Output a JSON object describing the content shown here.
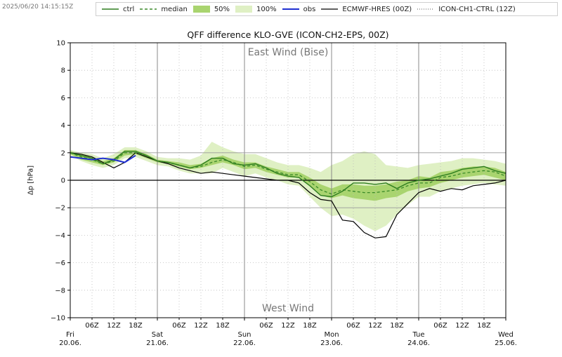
{
  "timestamp": "2025/06/20 14:15:15Z",
  "legend": [
    {
      "label": "ctrl",
      "style": "solid-green"
    },
    {
      "label": "median",
      "style": "dashed-green"
    },
    {
      "label": "50%",
      "style": "fill-dark"
    },
    {
      "label": "100%",
      "style": "fill-light"
    },
    {
      "label": "obs",
      "style": "solid-blue"
    },
    {
      "label": "ECMWF-HRES (00Z)",
      "style": "solid-black"
    },
    {
      "label": "ICON-CH1-CTRL (12Z)",
      "style": "dotted-black"
    }
  ],
  "colors": {
    "ctrl": "#2e7d1f",
    "median": "#3a8a28",
    "band50": "#a9d46f",
    "band100": "#dff0c4",
    "obs": "#1f2fd1",
    "ecmwf": "#000000",
    "icon_ch1": "#555555",
    "grid": "#bbbbbb"
  },
  "chart_data": {
    "type": "line",
    "title": "QFF difference KLO-GVE (ICON-CH2-EPS, 00Z)",
    "ylabel": "Δp [hPa]",
    "xlabel": "",
    "ylim": [
      -10,
      10
    ],
    "yticks": [
      10,
      8,
      6,
      4,
      2,
      0,
      -2,
      -4,
      -6,
      -8,
      -10
    ],
    "yticklabels": [
      "10",
      "8",
      "6",
      "4",
      "2",
      "0",
      "−2",
      "−4",
      "−6",
      "−8",
      "−10"
    ],
    "xlim_hours": [
      0,
      120
    ],
    "day_ticks": [
      {
        "h": 0,
        "day": "Fri",
        "date": "20.06."
      },
      {
        "h": 24,
        "day": "Sat",
        "date": "21.06."
      },
      {
        "h": 48,
        "day": "Sun",
        "date": "22.06."
      },
      {
        "h": 72,
        "day": "Mon",
        "date": "23.06."
      },
      {
        "h": 96,
        "day": "Tue",
        "date": "24.06."
      },
      {
        "h": 120,
        "day": "Wed",
        "date": "25.06."
      }
    ],
    "hour_labels": [
      "06Z",
      "12Z",
      "18Z"
    ],
    "annotations": {
      "top": "East Wind (Bise)",
      "bottom": "West Wind"
    },
    "x": [
      0,
      3,
      6,
      9,
      12,
      15,
      18,
      21,
      24,
      27,
      30,
      33,
      36,
      39,
      42,
      45,
      48,
      51,
      54,
      57,
      60,
      63,
      66,
      69,
      72,
      75,
      78,
      81,
      84,
      87,
      90,
      93,
      96,
      99,
      102,
      105,
      108,
      111,
      114,
      117,
      120
    ],
    "series": [
      {
        "name": "ctrl",
        "values": [
          2.0,
          1.8,
          1.6,
          1.2,
          1.5,
          2.1,
          2.1,
          1.8,
          1.4,
          1.3,
          1.1,
          0.9,
          1.1,
          1.6,
          1.6,
          1.2,
          1.1,
          1.2,
          0.9,
          0.5,
          0.3,
          0.2,
          -0.4,
          -1.1,
          -1.2,
          -0.8,
          -0.2,
          -0.2,
          -0.3,
          -0.2,
          -0.6,
          -0.2,
          0.0,
          0.1,
          0.3,
          0.5,
          0.8,
          0.9,
          1.0,
          0.7,
          0.5
        ]
      },
      {
        "name": "median",
        "values": [
          2.0,
          1.7,
          1.5,
          1.2,
          1.4,
          2.0,
          2.0,
          1.8,
          1.4,
          1.3,
          1.1,
          0.9,
          1.0,
          1.3,
          1.5,
          1.3,
          1.0,
          1.1,
          0.8,
          0.6,
          0.4,
          0.4,
          -0.1,
          -0.7,
          -1.0,
          -0.7,
          -0.8,
          -0.9,
          -0.9,
          -0.8,
          -0.7,
          -0.4,
          -0.2,
          -0.2,
          0.2,
          0.3,
          0.5,
          0.6,
          0.7,
          0.6,
          0.3
        ]
      },
      {
        "name": "ECMWF-HRES (00Z)",
        "values": [
          2.0,
          1.9,
          1.7,
          1.3,
          0.9,
          1.3,
          2.0,
          1.7,
          1.4,
          1.2,
          0.9,
          0.7,
          0.5,
          0.6,
          0.5,
          0.4,
          0.3,
          0.2,
          0.1,
          0.0,
          0.0,
          -0.2,
          -0.9,
          -1.4,
          -1.5,
          -2.9,
          -3.0,
          -3.8,
          -4.2,
          -4.1,
          -2.5,
          -1.7,
          -0.9,
          -0.6,
          -0.8,
          -0.6,
          -0.7,
          -0.4,
          -0.3,
          -0.2,
          0.0
        ]
      },
      {
        "name": "obs",
        "x": [
          0,
          3,
          6,
          9,
          12,
          15,
          18
        ],
        "values": [
          1.7,
          1.6,
          1.5,
          1.6,
          1.5,
          1.3,
          1.8
        ]
      },
      {
        "name": "50%",
        "lower": [
          1.9,
          1.5,
          1.3,
          1.1,
          1.3,
          1.8,
          1.9,
          1.6,
          1.3,
          1.2,
          1.0,
          0.8,
          0.9,
          1.1,
          1.3,
          1.1,
          0.8,
          0.9,
          0.6,
          0.4,
          0.2,
          0.2,
          -0.4,
          -1.1,
          -1.3,
          -1.1,
          -1.3,
          -1.4,
          -1.5,
          -1.3,
          -1.2,
          -0.8,
          -0.6,
          -0.5,
          -0.2,
          0.0,
          0.2,
          0.3,
          0.4,
          0.2,
          0.0
        ],
        "upper": [
          2.1,
          1.9,
          1.7,
          1.4,
          1.6,
          2.2,
          2.2,
          1.9,
          1.5,
          1.4,
          1.3,
          1.1,
          1.2,
          1.6,
          1.8,
          1.5,
          1.3,
          1.3,
          1.0,
          0.8,
          0.6,
          0.6,
          0.2,
          -0.3,
          -0.6,
          -0.3,
          -0.3,
          -0.4,
          -0.4,
          -0.3,
          -0.1,
          0.0,
          0.3,
          0.2,
          0.6,
          0.7,
          0.9,
          1.0,
          1.0,
          0.9,
          0.6
        ]
      },
      {
        "name": "100%",
        "lower": [
          1.8,
          1.4,
          1.1,
          0.9,
          1.1,
          1.6,
          1.7,
          1.4,
          1.1,
          1.0,
          0.7,
          0.5,
          0.5,
          0.5,
          0.9,
          0.6,
          0.3,
          0.5,
          0.2,
          0.0,
          -0.3,
          -0.4,
          -1.2,
          -2.0,
          -2.6,
          -2.5,
          -2.8,
          -3.3,
          -3.7,
          -3.3,
          -2.5,
          -1.8,
          -1.2,
          -1.2,
          -0.8,
          -0.6,
          -0.4,
          -0.3,
          -0.2,
          -0.3,
          -0.4
        ],
        "upper": [
          2.2,
          2.0,
          1.9,
          1.6,
          1.9,
          2.4,
          2.4,
          2.1,
          1.7,
          1.6,
          1.6,
          1.5,
          1.8,
          2.8,
          2.4,
          2.1,
          1.9,
          1.9,
          1.6,
          1.3,
          1.1,
          1.1,
          0.9,
          0.6,
          1.1,
          1.4,
          1.9,
          2.1,
          1.9,
          1.1,
          1.0,
          0.9,
          1.1,
          1.2,
          1.3,
          1.4,
          1.6,
          1.6,
          1.5,
          1.4,
          1.2
        ]
      }
    ],
    "grid": true,
    "legend_position": "top"
  }
}
